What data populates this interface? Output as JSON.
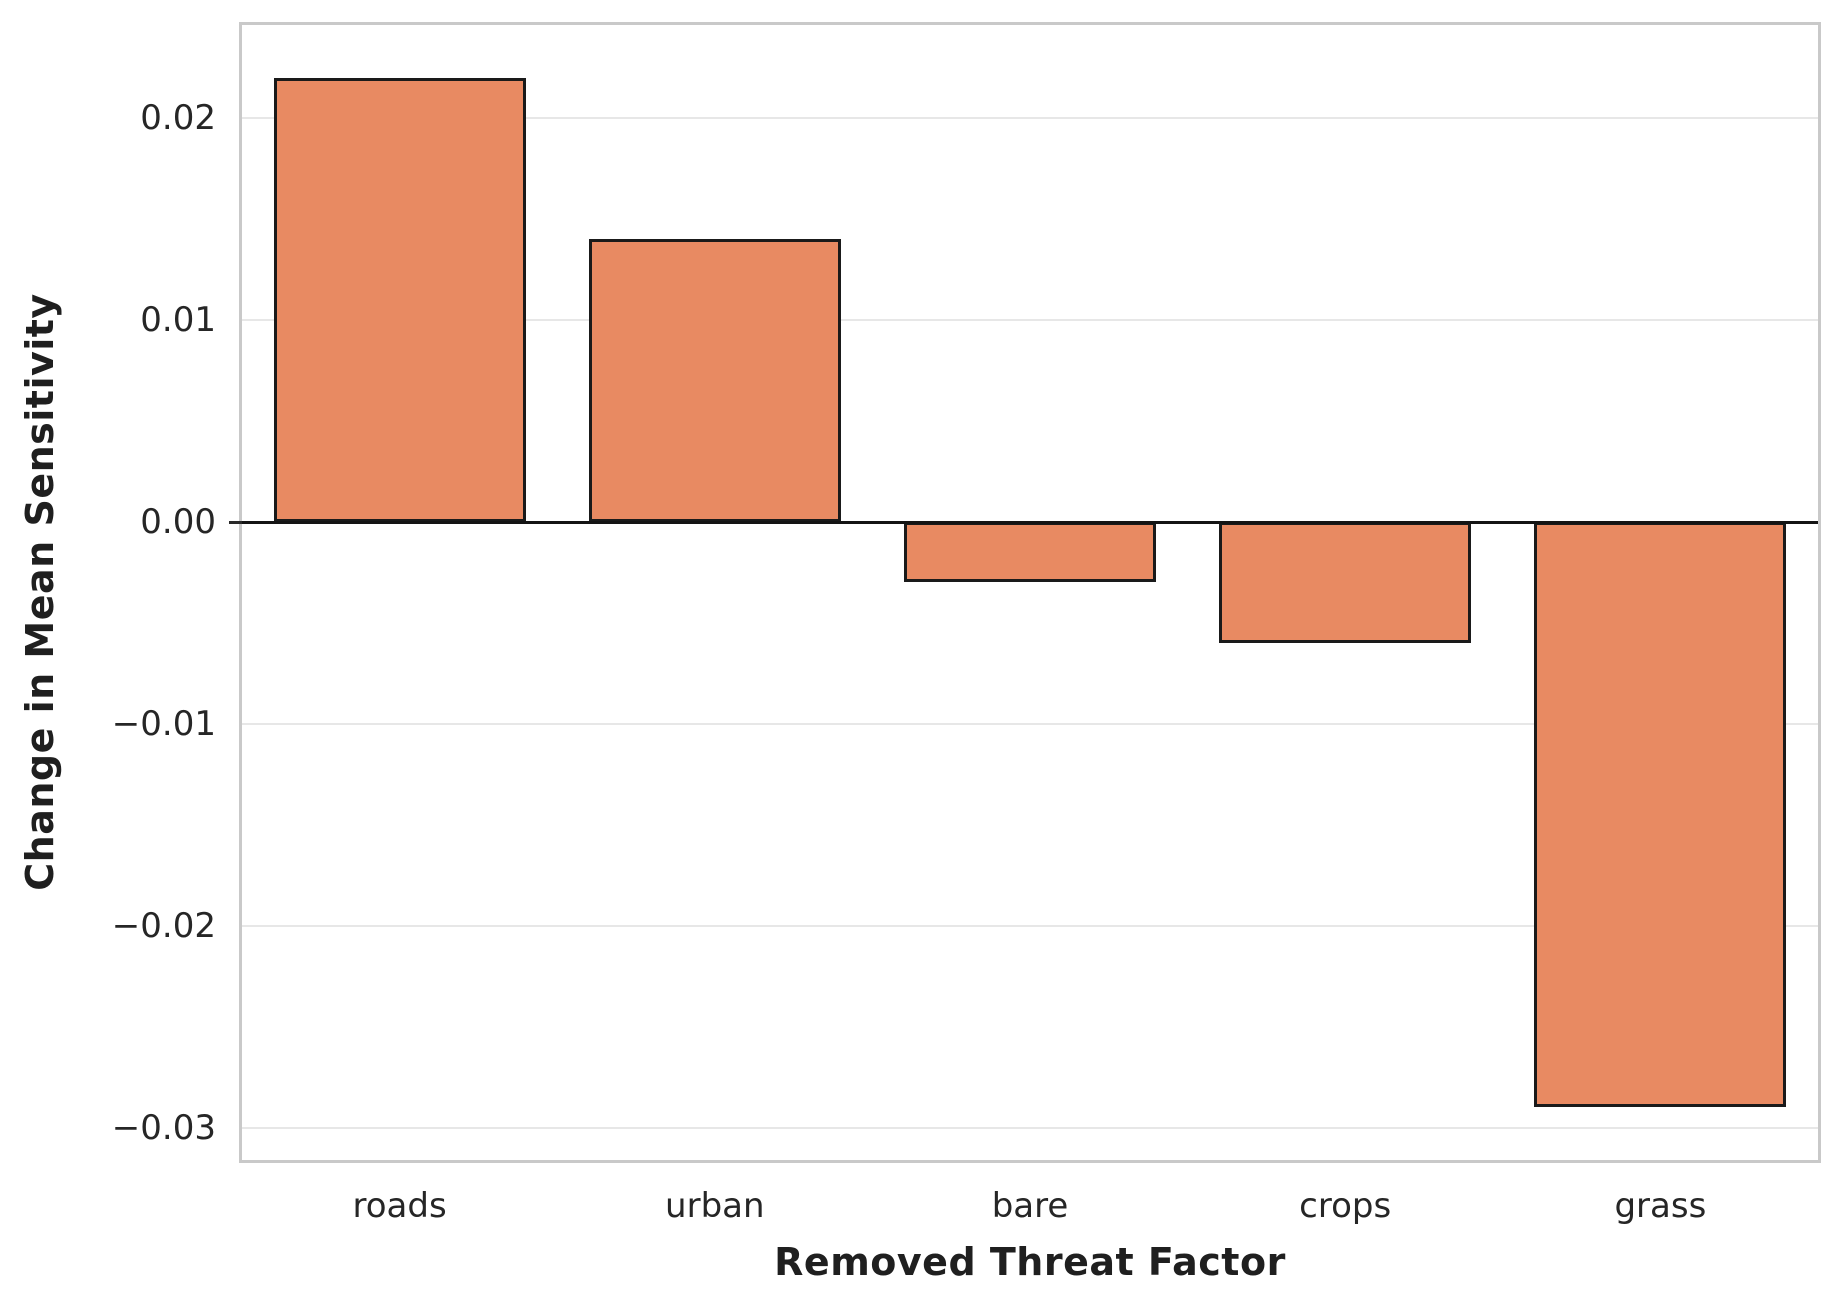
{
  "chart_data": {
    "type": "bar",
    "title": "",
    "xlabel": "Removed Threat Factor",
    "ylabel": "Change in Mean Sensitivity",
    "categories": [
      "roads",
      "urban",
      "bare",
      "crops",
      "grass"
    ],
    "values": [
      0.022,
      0.014,
      -0.003,
      -0.006,
      -0.029
    ],
    "yticks": [
      0.02,
      0.01,
      0.0,
      -0.01,
      -0.02,
      -0.03
    ],
    "ytick_labels": [
      "0.02",
      "0.01",
      "0.00",
      "−0.01",
      "−0.02",
      "−0.03"
    ],
    "ylim": [
      -0.0316,
      0.0246
    ],
    "grid": "horizontal-only",
    "legend": "none",
    "bar_rel_width": 0.8,
    "colors": {
      "bar_fill": "#E88A62",
      "bar_edge": "#1a1a1a",
      "zero_line": "#141414",
      "gridline": "#e7e7e7",
      "spine": "#c9c9c9",
      "tick_text": "#262626",
      "axis_title_text": "#1f1f1f",
      "background": "#ffffff"
    }
  }
}
